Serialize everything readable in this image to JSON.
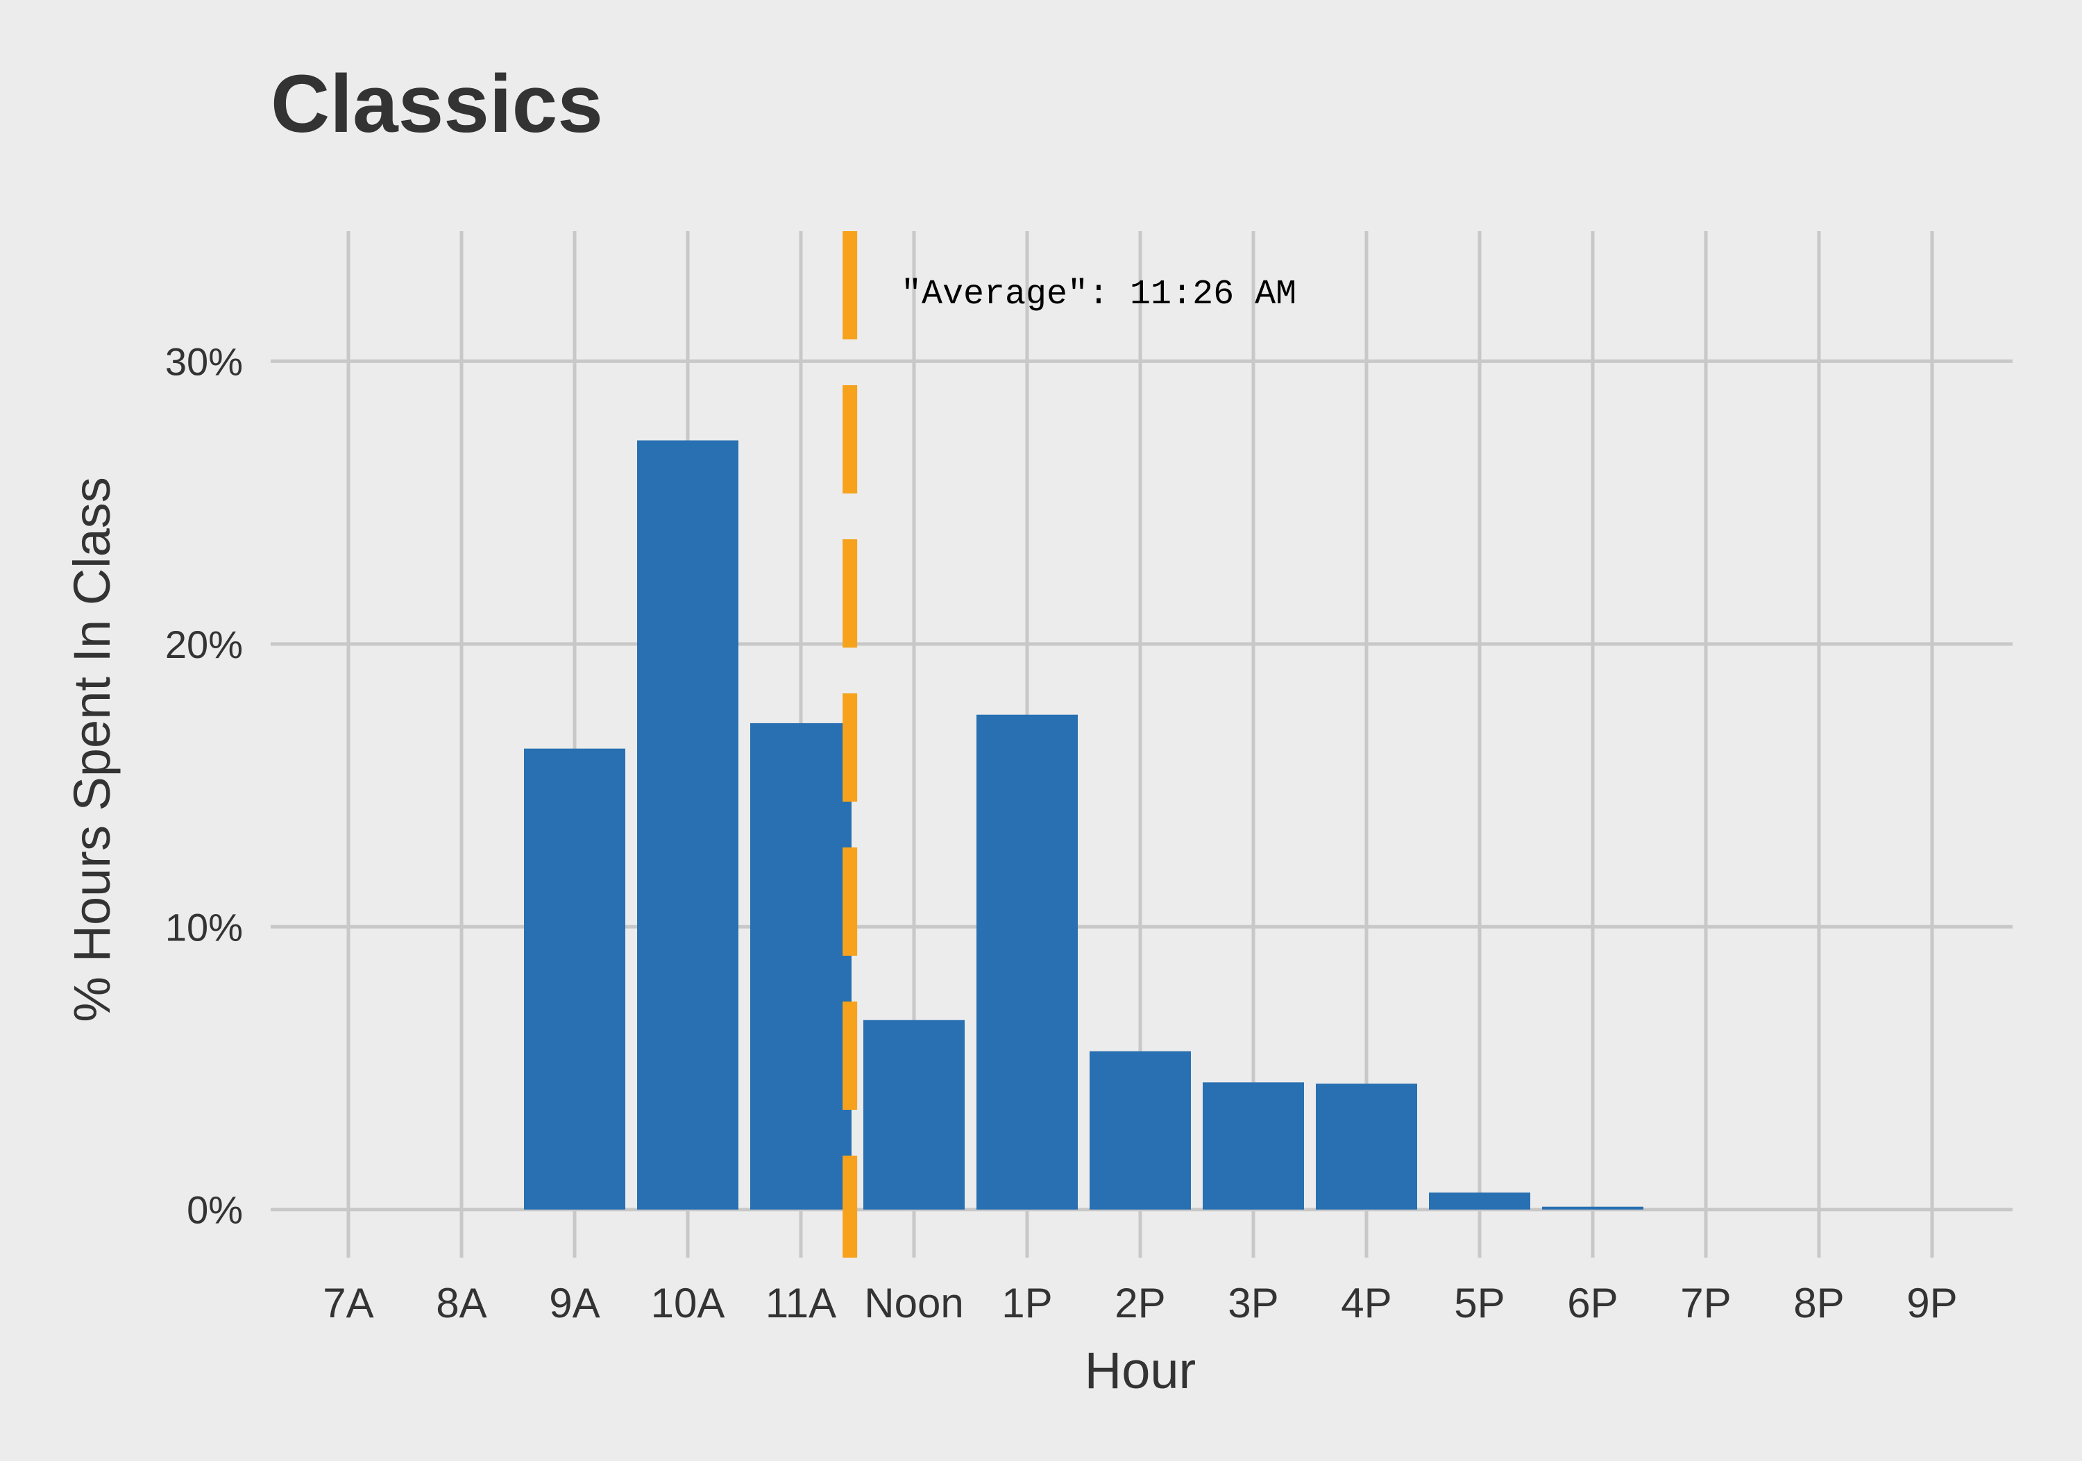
{
  "colors": {
    "background": "#ececec",
    "grid": "#c8c8c8",
    "bar": "#2870b1",
    "average_line": "#f6a21c",
    "text": "#333333"
  },
  "chart_data": {
    "type": "bar",
    "title": "Classics",
    "xlabel": "Hour",
    "ylabel": "% Hours Spent In Class",
    "categories": [
      "7A",
      "8A",
      "9A",
      "10A",
      "11A",
      "Noon",
      "1P",
      "2P",
      "3P",
      "4P",
      "5P",
      "6P",
      "7P",
      "8P",
      "9P"
    ],
    "values": [
      0,
      0,
      16.3,
      27.2,
      17.2,
      6.7,
      17.5,
      5.6,
      4.5,
      4.45,
      0.6,
      0.1,
      0,
      0,
      0
    ],
    "value_unit": "%",
    "ylim": [
      -1.7,
      34.6
    ],
    "yticks": [
      0,
      10,
      20,
      30
    ],
    "ytick_labels": [
      "0%",
      "10%",
      "20%",
      "30%"
    ],
    "grid": true,
    "legend": "none",
    "reference_line": {
      "x": "11:26 AM",
      "style": "dashed",
      "label": "\"Average\": 11:26 AM"
    }
  }
}
